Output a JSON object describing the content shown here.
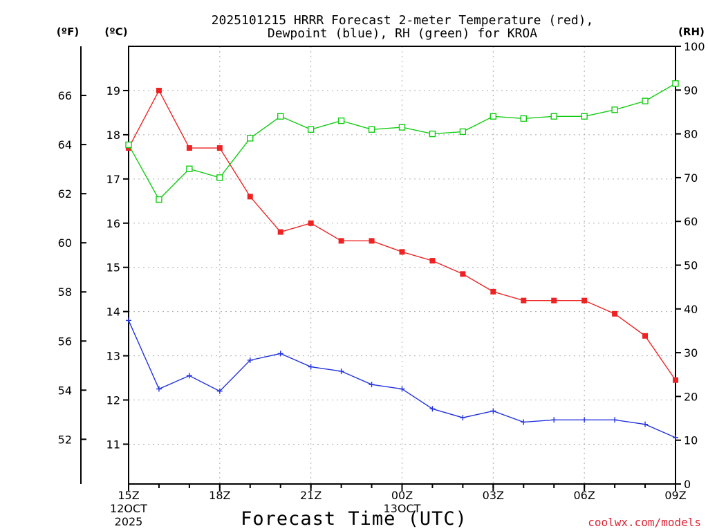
{
  "chart_data": {
    "type": "line",
    "title_line1": "2025101215 HRRR Forecast 2-meter Temperature (red),",
    "title_line2": "Dewpoint (blue), RH (green) for KROA",
    "xlabel": "Forecast Time (UTC)",
    "watermark": "coolwx.com/models",
    "unit_left_f": "(ºF)",
    "unit_left_c": "(ºC)",
    "unit_right": "(RH)",
    "x_hours": [
      0,
      1,
      2,
      3,
      4,
      5,
      6,
      7,
      8,
      9,
      10,
      11,
      12,
      13,
      14,
      15,
      16,
      17,
      18
    ],
    "x_ticks": [
      {
        "hour": 0,
        "label": "15Z",
        "sub1": "12OCT",
        "sub2": "2025"
      },
      {
        "hour": 3,
        "label": "18Z",
        "sub1": "",
        "sub2": ""
      },
      {
        "hour": 6,
        "label": "21Z",
        "sub1": "",
        "sub2": ""
      },
      {
        "hour": 9,
        "label": "00Z",
        "sub1": "13OCT",
        "sub2": ""
      },
      {
        "hour": 12,
        "label": "03Z",
        "sub1": "",
        "sub2": ""
      },
      {
        "hour": 15,
        "label": "06Z",
        "sub1": "",
        "sub2": ""
      },
      {
        "hour": 18,
        "label": "09Z",
        "sub1": "",
        "sub2": ""
      }
    ],
    "c_range": [
      10.1,
      20.0
    ],
    "c_ticks": [
      11,
      12,
      13,
      14,
      15,
      16,
      17,
      18,
      19
    ],
    "f_ticks": [
      52,
      54,
      56,
      58,
      60,
      62,
      64,
      66
    ],
    "rh_range": [
      0,
      100
    ],
    "rh_ticks": [
      0,
      10,
      20,
      30,
      40,
      50,
      60,
      70,
      80,
      90,
      100
    ],
    "series": [
      {
        "name": "Temperature",
        "color": "#ee2222",
        "marker": "filled-square",
        "values_c": [
          17.7,
          19.0,
          17.7,
          17.7,
          16.6,
          15.8,
          16.0,
          15.6,
          15.6,
          15.35,
          15.15,
          14.85,
          14.45,
          14.25,
          14.25,
          14.25,
          13.95,
          13.45,
          12.45
        ]
      },
      {
        "name": "Dewpoint",
        "color": "#2233dd",
        "marker": "plus",
        "values_c": [
          13.8,
          12.25,
          12.55,
          12.2,
          12.9,
          13.05,
          12.75,
          12.65,
          12.35,
          12.25,
          11.8,
          11.6,
          11.75,
          11.5,
          11.55,
          11.55,
          11.55,
          11.45,
          11.15
        ]
      },
      {
        "name": "RH",
        "color": "#11cc11",
        "marker": "open-square",
        "values_rh": [
          77.5,
          65,
          72,
          70,
          79,
          84,
          81,
          83,
          81,
          81.5,
          80,
          80.5,
          84,
          83.5,
          84,
          84,
          85.5,
          87.5,
          91.5
        ]
      }
    ]
  }
}
